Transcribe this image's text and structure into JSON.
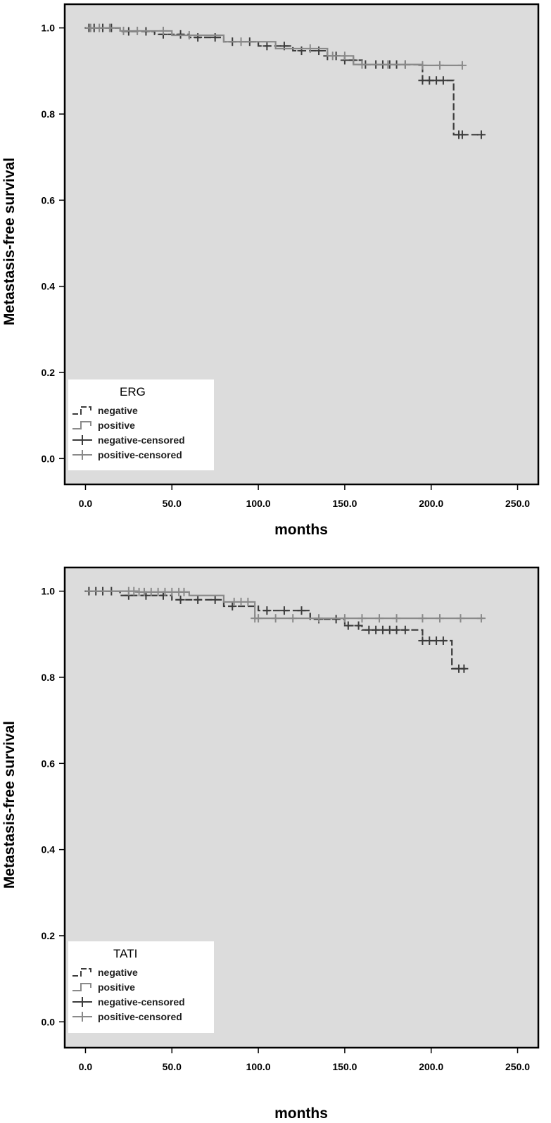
{
  "chart_data": [
    {
      "type": "line",
      "xlabel": "months",
      "ylabel": "Metastasis-free survival",
      "xlim": [
        -12,
        262
      ],
      "ylim": [
        -0.06,
        1.055
      ],
      "x_ticks": [
        "0.0",
        "50.0",
        "100.0",
        "150.0",
        "200.0",
        "250.0"
      ],
      "y_ticks": [
        "0.0",
        "0.2",
        "0.4",
        "0.6",
        "0.8",
        "1.0"
      ],
      "legend": {
        "title": "ERG",
        "placement": "bottom-left",
        "entries": [
          "negative",
          "positive",
          "negative-censored",
          "positive-censored"
        ]
      },
      "series": [
        {
          "name": "negative",
          "color": "#3c3c3c",
          "dash": true,
          "step_x": [
            0,
            20,
            40,
            60,
            80,
            100,
            120,
            140,
            150,
            160,
            195,
            213,
            230
          ],
          "step_y": [
            1.0,
            0.992,
            0.985,
            0.978,
            0.968,
            0.958,
            0.947,
            0.935,
            0.925,
            0.915,
            0.878,
            0.752,
            0.752
          ],
          "censored_x": [
            2,
            5,
            10,
            15,
            25,
            35,
            45,
            55,
            65,
            75,
            85,
            95,
            105,
            115,
            125,
            135,
            140,
            145,
            150,
            155,
            162,
            168,
            172,
            176,
            180,
            185,
            195,
            199,
            203,
            207,
            216,
            218,
            229
          ]
        },
        {
          "name": "positive",
          "color": "#8a8a8a",
          "dash": false,
          "step_x": [
            0,
            20,
            50,
            80,
            110,
            140,
            155,
            195,
            218
          ],
          "step_y": [
            1.0,
            0.993,
            0.983,
            0.968,
            0.952,
            0.935,
            0.915,
            0.913,
            0.913
          ],
          "censored_x": [
            3,
            8,
            14,
            22,
            30,
            45,
            60,
            90,
            130,
            143,
            150,
            160,
            175,
            185,
            195,
            205,
            218
          ]
        }
      ]
    },
    {
      "type": "line",
      "xlabel": "months",
      "ylabel": "Metastasis-free survival",
      "xlim": [
        -12,
        262
      ],
      "ylim": [
        -0.06,
        1.055
      ],
      "x_ticks": [
        "0.0",
        "50.0",
        "100.0",
        "150.0",
        "200.0",
        "250.0"
      ],
      "y_ticks": [
        "0.0",
        "0.2",
        "0.4",
        "0.6",
        "0.8",
        "1.0"
      ],
      "legend": {
        "title": "TATI",
        "placement": "bottom-left",
        "entries": [
          "negative",
          "positive",
          "negative-censored",
          "positive-censored"
        ]
      },
      "series": [
        {
          "name": "negative",
          "color": "#3c3c3c",
          "dash": true,
          "step_x": [
            0,
            20,
            50,
            80,
            100,
            130,
            150,
            160,
            195,
            212,
            220
          ],
          "step_y": [
            1.0,
            0.99,
            0.98,
            0.965,
            0.955,
            0.935,
            0.92,
            0.91,
            0.885,
            0.82,
            0.82
          ],
          "censored_x": [
            2,
            6,
            10,
            15,
            25,
            35,
            45,
            55,
            65,
            75,
            85,
            105,
            115,
            125,
            135,
            145,
            152,
            158,
            164,
            168,
            172,
            176,
            180,
            185,
            195,
            199,
            203,
            207,
            216,
            219
          ]
        },
        {
          "name": "positive",
          "color": "#8a8a8a",
          "dash": false,
          "step_x": [
            0,
            30,
            60,
            80,
            98,
            230
          ],
          "step_y": [
            1.0,
            0.998,
            0.99,
            0.975,
            0.937,
            0.937
          ],
          "censored_x": [
            25,
            28,
            31,
            34,
            38,
            42,
            46,
            50,
            54,
            57,
            86,
            90,
            94,
            98,
            100,
            110,
            120,
            135,
            150,
            160,
            170,
            180,
            195,
            205,
            217,
            229
          ]
        }
      ]
    }
  ]
}
